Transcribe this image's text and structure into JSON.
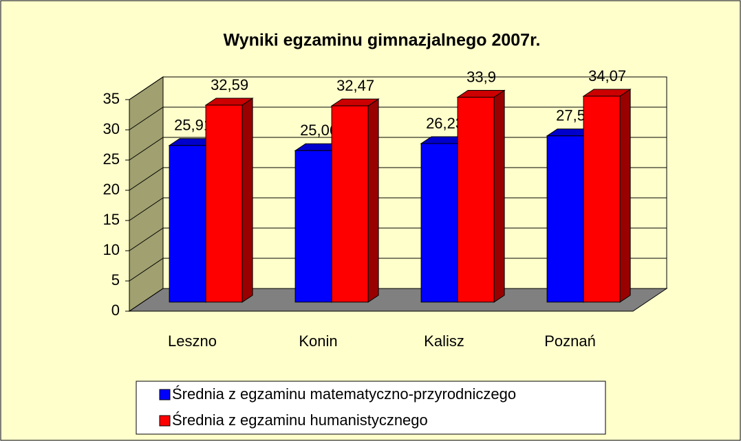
{
  "chart_data": {
    "type": "bar",
    "title": "Wyniki egzaminu gimnazjalnego 2007r.",
    "categories": [
      "Leszno",
      "Konin",
      "Kalisz",
      "Poznań"
    ],
    "series": [
      {
        "name": "Średnia z egzaminu matematyczno-przyrodniczego",
        "color": "#0000ff",
        "values": [
          25.91,
          25.06,
          26.23,
          27.5
        ],
        "value_labels": [
          "25,91",
          "25,06",
          "26,23",
          "27,5"
        ]
      },
      {
        "name": "Średnia z egzaminu humanistycznego",
        "color": "#ff0000",
        "values": [
          32.59,
          32.47,
          33.9,
          34.07
        ],
        "value_labels": [
          "32,59",
          "32,47",
          "33,9",
          "34,07"
        ]
      }
    ],
    "ylim": [
      0,
      35
    ],
    "yticks": [
      0,
      5,
      10,
      15,
      20,
      25,
      30,
      35
    ],
    "grid": true,
    "legend": "bottom"
  }
}
